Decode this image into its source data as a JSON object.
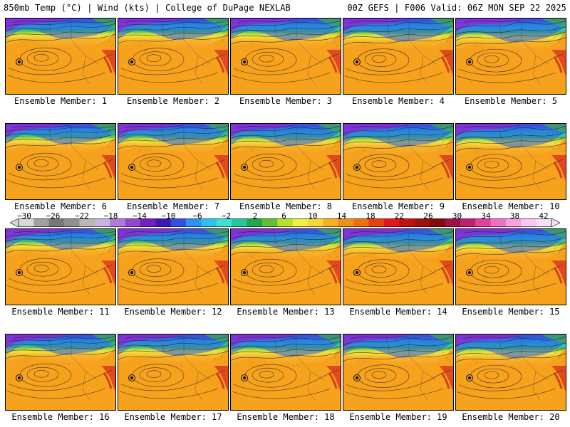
{
  "header": {
    "left": "850mb Temp (°C) | Wind (kts) | College of DuPage NEXLAB",
    "right": "00Z GEFS | F006 Valid: 06Z MON SEP 22 2025"
  },
  "panels": [
    {
      "label": "Ensemble Member: 1"
    },
    {
      "label": "Ensemble Member: 2"
    },
    {
      "label": "Ensemble Member: 3"
    },
    {
      "label": "Ensemble Member: 4"
    },
    {
      "label": "Ensemble Member: 5"
    },
    {
      "label": "Ensemble Member: 6"
    },
    {
      "label": "Ensemble Member: 7"
    },
    {
      "label": "Ensemble Member: 8"
    },
    {
      "label": "Ensemble Member: 9"
    },
    {
      "label": "Ensemble Member: 10"
    },
    {
      "label": "Ensemble Member: 11"
    },
    {
      "label": "Ensemble Member: 12"
    },
    {
      "label": "Ensemble Member: 13"
    },
    {
      "label": "Ensemble Member: 14"
    },
    {
      "label": "Ensemble Member: 15"
    },
    {
      "label": "Ensemble Member: 16"
    },
    {
      "label": "Ensemble Member: 17"
    },
    {
      "label": "Ensemble Member: 18"
    },
    {
      "label": "Ensemble Member: 19"
    },
    {
      "label": "Ensemble Member: 20"
    }
  ],
  "colorbar": {
    "tick_labels": [
      "−30",
      "−26",
      "−22",
      "−18",
      "−14",
      "−10",
      "−6",
      "−2",
      "2",
      "6",
      "10",
      "14",
      "18",
      "22",
      "26",
      "30",
      "34",
      "38",
      "42"
    ],
    "colors": [
      "#d8d8d8",
      "#a0a0a0",
      "#787878",
      "#909090",
      "#b8b8b8",
      "#c8b4e0",
      "#b07cd8",
      "#9048d0",
      "#7020c0",
      "#4018b0",
      "#3050e0",
      "#2e90f0",
      "#30c0f0",
      "#40e0d8",
      "#20c8a0",
      "#20a848",
      "#60c030",
      "#b8e030",
      "#f0f040",
      "#f8d838",
      "#f8b020",
      "#f09018",
      "#f07010",
      "#e84010",
      "#e01818",
      "#c01010",
      "#a01010",
      "#800c0c",
      "#a01040",
      "#c02070",
      "#e040a0",
      "#f070c8",
      "#f8a0e0",
      "#f8c8f0",
      "#f8e0f8"
    ]
  }
}
